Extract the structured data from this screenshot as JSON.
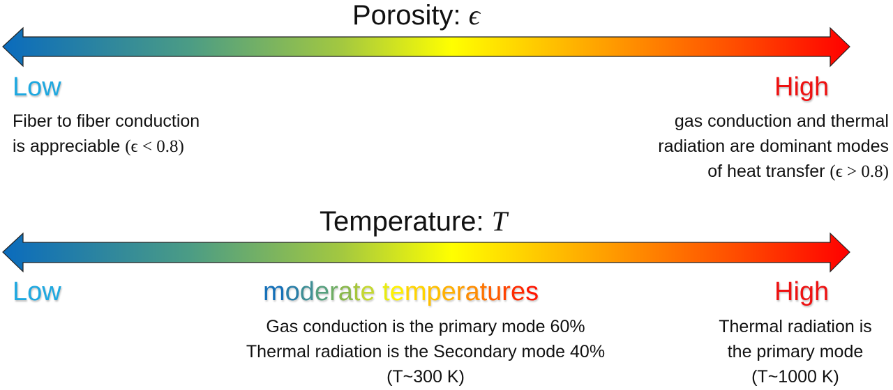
{
  "colors": {
    "gradient_stops": [
      "#0a6bbd",
      "#5aa870",
      "#a3c840",
      "#ffff00",
      "#ffa500",
      "#ff3300",
      "#ff0000"
    ],
    "low_label": "#1ea8e0",
    "high_label": "#ee1111",
    "arrow_outline": "#222222"
  },
  "porosity": {
    "title_text": "Porosity: ",
    "title_symbol": "ϵ",
    "low": {
      "label": "Low",
      "line1": "Fiber to fiber conduction",
      "line2_text": "is appreciable ",
      "line2_math": "(ϵ < 0.8)"
    },
    "high": {
      "label": "High",
      "line1": "gas conduction and thermal",
      "line2": "radiation are dominant modes",
      "line3_text": "of heat transfer ",
      "line3_math": "(ϵ > 0.8)"
    }
  },
  "temperature": {
    "title_text": "Temperature: ",
    "title_symbol": "T",
    "low": {
      "label": "Low"
    },
    "moderate": {
      "label_letters": [
        "m",
        "o",
        "d",
        "e",
        "r",
        "a",
        "t",
        "e",
        " ",
        "t",
        "e",
        "m",
        "p",
        "e",
        "r",
        "a",
        "t",
        "u",
        "r",
        "e",
        "s"
      ],
      "label_colors": [
        "#1470b8",
        "#2a7fa8",
        "#3f8f96",
        "#56a07e",
        "#6fae64",
        "#8ab84c",
        "#a6c63a",
        "#c4d830",
        " ",
        "#e8ec10",
        "#fff200",
        "#ffd400",
        "#ffc000",
        "#ffb000",
        "#ffa000",
        "#ff8c00",
        "#ff7400",
        "#ff5c00",
        "#ff4200",
        "#ff2a00",
        "#ff1400"
      ],
      "line1": "Gas conduction is the primary mode 60%",
      "line2": "Thermal radiation is the Secondary mode 40%",
      "line3": "(T~300 K)"
    },
    "high": {
      "label": "High",
      "line1": "Thermal radiation is",
      "line2": "the primary mode",
      "line3": "(T~1000 K)"
    }
  }
}
